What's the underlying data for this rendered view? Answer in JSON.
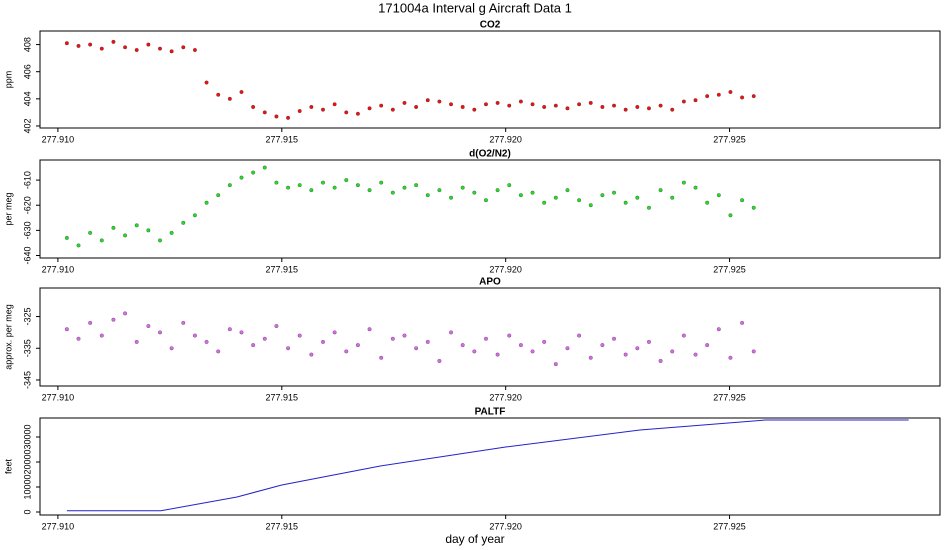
{
  "title": "171004a   Interval g Aircraft Data 1",
  "chart_data": [
    {
      "type": "scatter",
      "title": "CO2",
      "y_label": "ppm",
      "color": "#ee1111",
      "x": [
        277.9102,
        277.91046,
        277.91072,
        277.91098,
        277.91124,
        277.9115,
        277.91176,
        277.91202,
        277.91228,
        277.91254,
        277.9128,
        277.91306,
        277.91332,
        277.91358,
        277.91384,
        277.9141,
        277.91436,
        277.91462,
        277.91488,
        277.91514,
        277.9154,
        277.91566,
        277.91592,
        277.91618,
        277.91644,
        277.9167,
        277.91696,
        277.91722,
        277.91748,
        277.91774,
        277.918,
        277.91826,
        277.91852,
        277.91878,
        277.91904,
        277.9193,
        277.91956,
        277.91982,
        277.92008,
        277.92034,
        277.9206,
        277.92086,
        277.92112,
        277.92138,
        277.92164,
        277.9219,
        277.92216,
        277.92242,
        277.92268,
        277.92294,
        277.9232,
        277.92346,
        277.92372,
        277.92398,
        277.92424,
        277.9245,
        277.92476,
        277.92502,
        277.92528,
        277.92554
      ],
      "values": [
        408.1,
        407.9,
        408.0,
        407.7,
        408.2,
        407.8,
        407.6,
        408.0,
        407.7,
        407.5,
        407.8,
        407.6,
        405.2,
        404.3,
        404.0,
        404.5,
        403.4,
        403.0,
        402.7,
        402.6,
        403.1,
        403.4,
        403.2,
        403.6,
        403.0,
        402.9,
        403.3,
        403.5,
        403.2,
        403.7,
        403.4,
        403.9,
        403.8,
        403.6,
        403.4,
        403.2,
        403.6,
        403.7,
        403.5,
        403.8,
        403.6,
        403.4,
        403.5,
        403.3,
        403.6,
        403.7,
        403.4,
        403.5,
        403.2,
        403.4,
        403.3,
        403.5,
        403.2,
        403.8,
        403.9,
        404.2,
        404.3,
        404.5,
        404.1,
        404.2
      ],
      "xlim": [
        277.9096,
        277.9297
      ],
      "ylim": [
        401.85,
        409.0
      ],
      "xticks": [
        {
          "value": 277.91,
          "label": "277.910"
        },
        {
          "value": 277.915,
          "label": "277.915"
        },
        {
          "value": 277.92,
          "label": "277.920"
        },
        {
          "value": 277.925,
          "label": "277.925"
        }
      ],
      "yticks": [
        402,
        404,
        406,
        408
      ]
    },
    {
      "type": "scatter",
      "title": "d(O2/N2)",
      "y_label": "per meg",
      "color": "#22dd22",
      "x": [
        277.9102,
        277.91046,
        277.91072,
        277.91098,
        277.91124,
        277.9115,
        277.91176,
        277.91202,
        277.91228,
        277.91254,
        277.9128,
        277.91306,
        277.91332,
        277.91358,
        277.91384,
        277.9141,
        277.91436,
        277.91462,
        277.91488,
        277.91514,
        277.9154,
        277.91566,
        277.91592,
        277.91618,
        277.91644,
        277.9167,
        277.91696,
        277.91722,
        277.91748,
        277.91774,
        277.918,
        277.91826,
        277.91852,
        277.91878,
        277.91904,
        277.9193,
        277.91956,
        277.91982,
        277.92008,
        277.92034,
        277.9206,
        277.92086,
        277.92112,
        277.92138,
        277.92164,
        277.9219,
        277.92216,
        277.92242,
        277.92268,
        277.92294,
        277.9232,
        277.92346,
        277.92372,
        277.92398,
        277.92424,
        277.9245,
        277.92476,
        277.92502,
        277.92528,
        277.92554
      ],
      "values": [
        -633,
        -636,
        -631,
        -634,
        -629,
        -632,
        -628,
        -630,
        -634,
        -631,
        -627,
        -624,
        -619,
        -616,
        -612,
        -609,
        -607,
        -605,
        -611,
        -613,
        -612,
        -614,
        -611,
        -613,
        -610,
        -612,
        -614,
        -611,
        -615,
        -613,
        -612,
        -616,
        -614,
        -617,
        -613,
        -615,
        -618,
        -614,
        -612,
        -616,
        -615,
        -619,
        -617,
        -614,
        -618,
        -620,
        -616,
        -615,
        -619,
        -617,
        -621,
        -614,
        -617,
        -611,
        -613,
        -619,
        -616,
        -624,
        -618,
        -621
      ],
      "xlim": [
        277.9096,
        277.9297
      ],
      "ylim": [
        -641,
        -602
      ],
      "xticks": [
        {
          "value": 277.91,
          "label": "277.910"
        },
        {
          "value": 277.915,
          "label": "277.915"
        },
        {
          "value": 277.92,
          "label": "277.920"
        },
        {
          "value": 277.925,
          "label": "277.925"
        }
      ],
      "yticks": [
        -640,
        -630,
        -620,
        -610
      ]
    },
    {
      "type": "scatter",
      "title": "APO",
      "y_label": "approx. per meg",
      "color": "#dd66ee",
      "x": [
        277.9102,
        277.91046,
        277.91072,
        277.91098,
        277.91124,
        277.9115,
        277.91176,
        277.91202,
        277.91228,
        277.91254,
        277.9128,
        277.91306,
        277.91332,
        277.91358,
        277.91384,
        277.9141,
        277.91436,
        277.91462,
        277.91488,
        277.91514,
        277.9154,
        277.91566,
        277.91592,
        277.91618,
        277.91644,
        277.9167,
        277.91696,
        277.91722,
        277.91748,
        277.91774,
        277.918,
        277.91826,
        277.91852,
        277.91878,
        277.91904,
        277.9193,
        277.91956,
        277.91982,
        277.92008,
        277.92034,
        277.9206,
        277.92086,
        277.92112,
        277.92138,
        277.92164,
        277.9219,
        277.92216,
        277.92242,
        277.92268,
        277.92294,
        277.9232,
        277.92346,
        277.92372,
        277.92398,
        277.92424,
        277.9245,
        277.92476,
        277.92502,
        277.92528,
        277.92554
      ],
      "values": [
        -329,
        -332,
        -327,
        -331,
        -326,
        -324,
        -333,
        -328,
        -330,
        -335,
        -327,
        -331,
        -333,
        -336,
        -329,
        -330,
        -334,
        -332,
        -328,
        -335,
        -331,
        -337,
        -333,
        -330,
        -336,
        -334,
        -329,
        -338,
        -332,
        -331,
        -335,
        -333,
        -339,
        -330,
        -334,
        -336,
        -332,
        -337,
        -331,
        -334,
        -336,
        -333,
        -340,
        -335,
        -331,
        -338,
        -334,
        -332,
        -337,
        -335,
        -333,
        -339,
        -336,
        -331,
        -337,
        -334,
        -329,
        -338,
        -327,
        -336
      ],
      "xlim": [
        277.9096,
        277.9297
      ],
      "ylim": [
        -346.9,
        -316
      ],
      "xticks": [
        {
          "value": 277.91,
          "label": "277.910"
        },
        {
          "value": 277.915,
          "label": "277.915"
        },
        {
          "value": 277.92,
          "label": "277.920"
        },
        {
          "value": 277.925,
          "label": "277.925"
        }
      ],
      "yticks": [
        -345,
        -335,
        -325
      ]
    },
    {
      "type": "line",
      "title": "PALTF",
      "y_label": "feet",
      "x_label": "day of year",
      "color": "#2222cc",
      "x": [
        277.9102,
        277.9123,
        277.914,
        277.915,
        277.9172,
        277.92,
        277.923,
        277.9258,
        277.929
      ],
      "values": [
        500,
        500,
        6000,
        10800,
        18400,
        26000,
        32800,
        36800,
        36800
      ],
      "xlim": [
        277.9096,
        277.9297
      ],
      "ylim": [
        -1200,
        37600
      ],
      "xticks": [
        {
          "value": 277.91,
          "label": "277.910"
        },
        {
          "value": 277.915,
          "label": "277.915"
        },
        {
          "value": 277.92,
          "label": "277.920"
        },
        {
          "value": 277.925,
          "label": "277.925"
        }
      ],
      "yticks": [
        0,
        10000,
        20000,
        30000
      ]
    }
  ]
}
